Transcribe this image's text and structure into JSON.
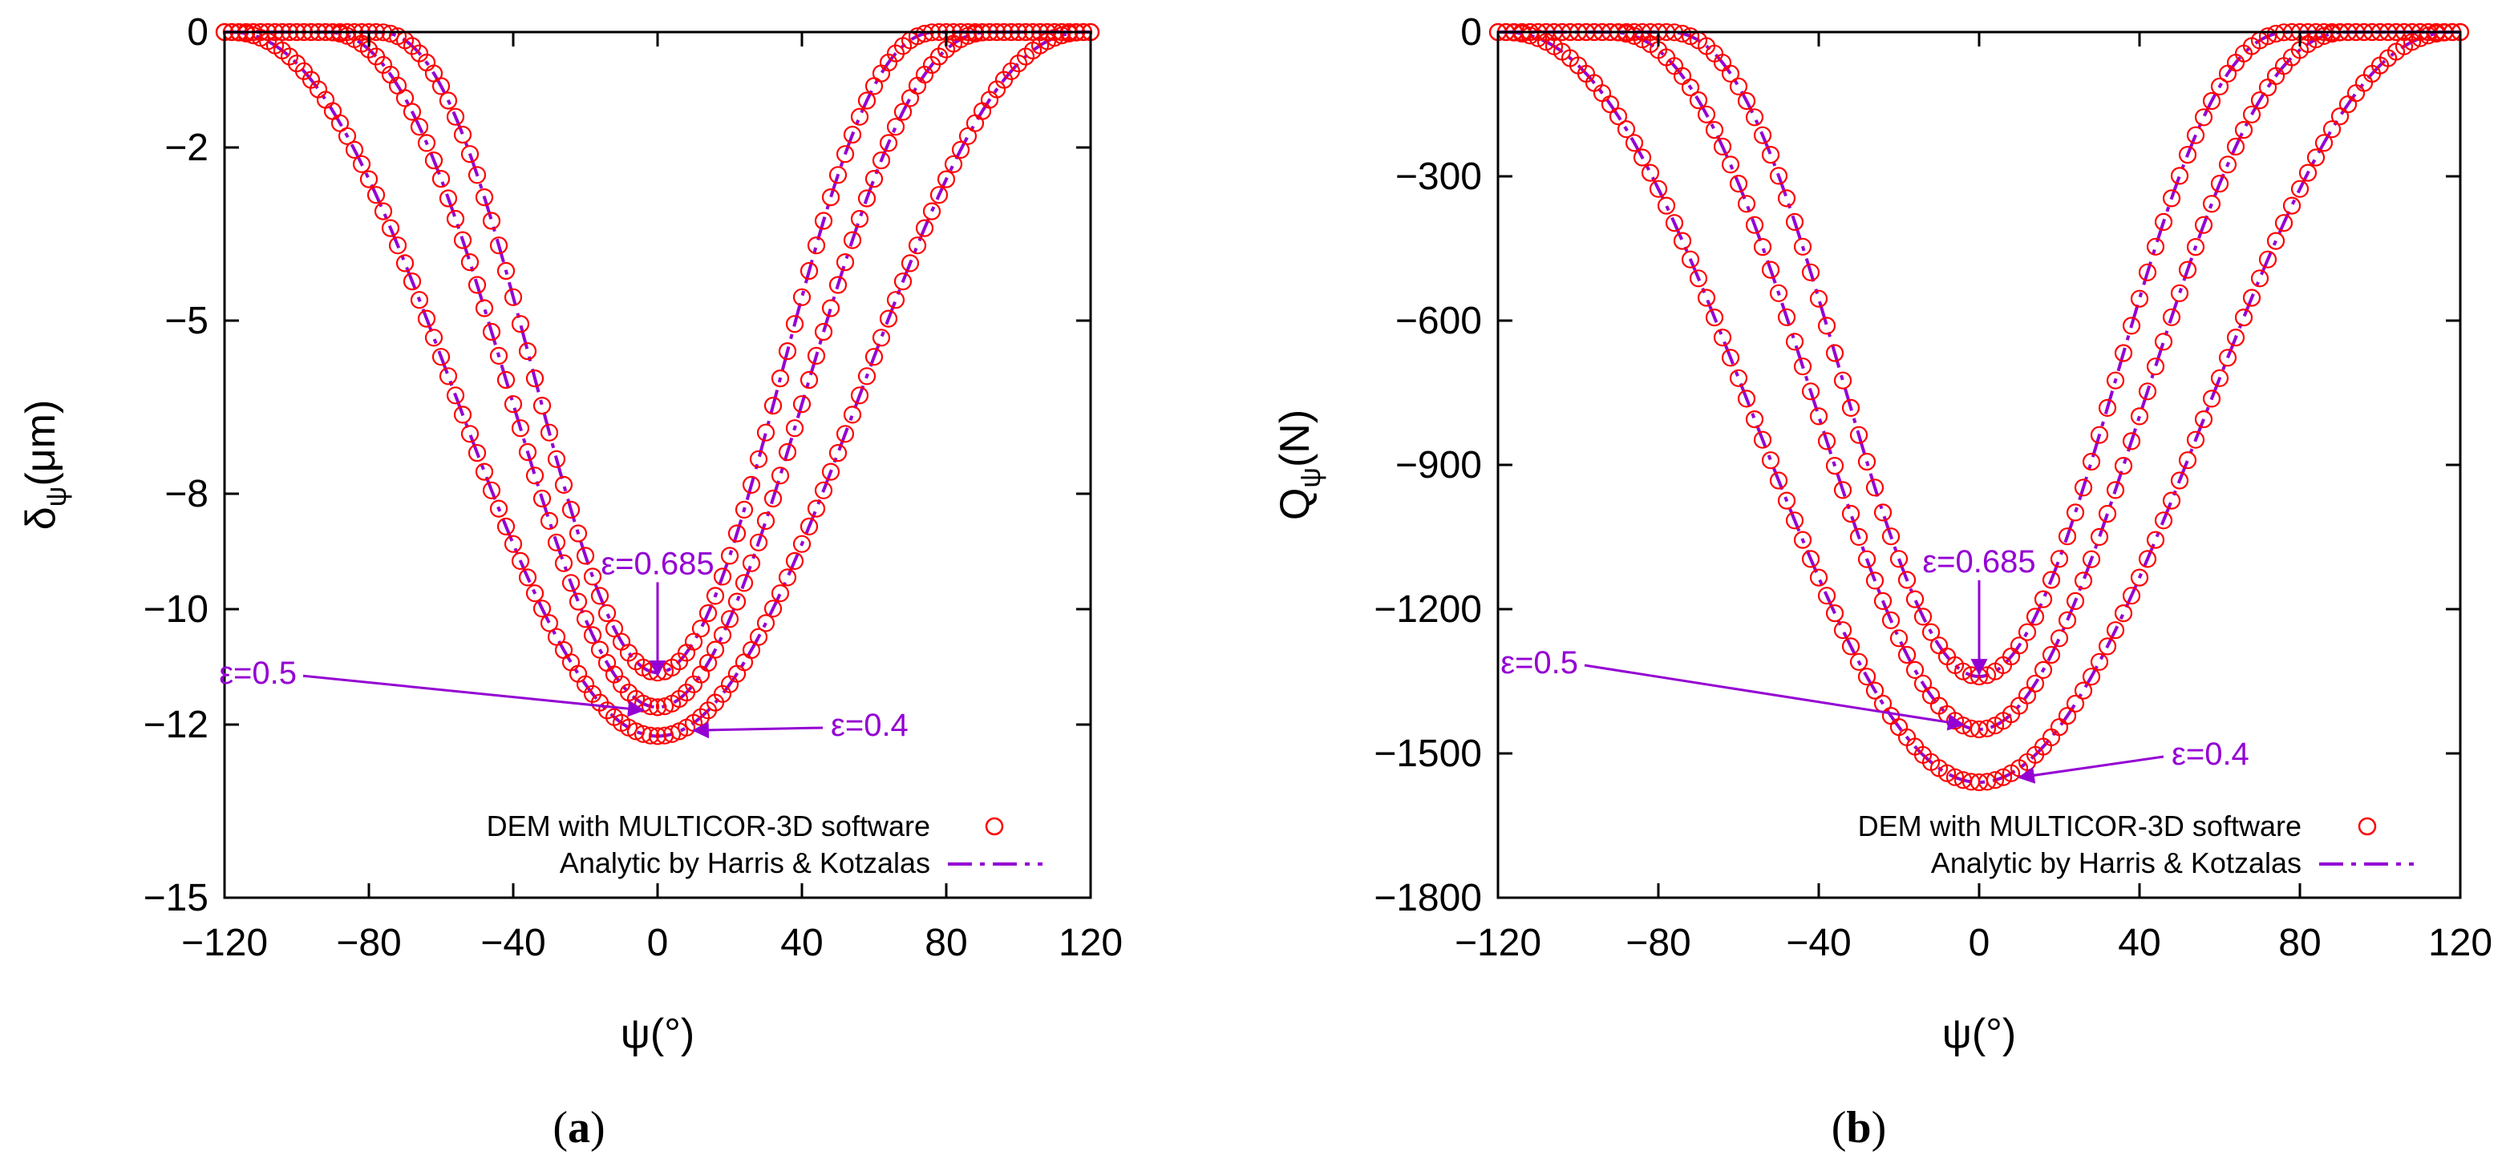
{
  "figure": {
    "legend": {
      "dem_label": "DEM with MULTICOR-3D software",
      "analytic_label": "Analytic by Harris & Kotzalas"
    },
    "colors": {
      "dem": "#ff0000",
      "analytic": "#9400d3",
      "annotation": "#9400d3"
    }
  },
  "chart_data": [
    {
      "type": "scatter",
      "caption": "a",
      "xlabel": "ψ(°)",
      "ylabel_main": "δ",
      "ylabel_sub": "ψ",
      "ylabel_unit": "(μm)",
      "xlim": [
        -120,
        120
      ],
      "ylim": [
        -15,
        0
      ],
      "xticks": [
        -120,
        -80,
        -40,
        0,
        40,
        80,
        120
      ],
      "xtick_labels": [
        "−120",
        "−80",
        "−40",
        "0",
        "40",
        "80",
        "120"
      ],
      "yticks": [
        0,
        -2,
        -5,
        -8,
        -10,
        -12,
        -15
      ],
      "ytick_labels": [
        "0",
        "−2",
        "−5",
        "−8",
        "−10",
        "−12",
        "−15"
      ],
      "series": [
        {
          "name": "ε=0.4",
          "epsilon": 0.4,
          "min": -12.2,
          "half_width": 113,
          "phase": 6
        },
        {
          "name": "ε=0.5",
          "epsilon": 0.5,
          "min": -11.7,
          "half_width": 98,
          "phase": -6
        },
        {
          "name": "ε=0.685",
          "epsilon": 0.685,
          "min": -11.1,
          "half_width": 88,
          "phase": -12
        }
      ],
      "annotations": [
        {
          "text": "ε=0.685",
          "text_at": [
            0,
            -9.2
          ],
          "arrow_to": [
            0,
            -11.15
          ]
        },
        {
          "text": "ε=0.5",
          "text_at": [
            -100,
            -11.1
          ],
          "arrow_to": [
            -4,
            -11.75
          ]
        },
        {
          "text": "ε=0.4",
          "text_at": [
            48,
            -12.0
          ],
          "arrow_to": [
            10,
            -12.1
          ]
        }
      ]
    },
    {
      "type": "scatter",
      "caption": "b",
      "xlabel": "ψ(°)",
      "ylabel_main": "Q",
      "ylabel_sub": "ψ",
      "ylabel_unit": "(N)",
      "xlim": [
        -120,
        120
      ],
      "ylim": [
        -1800,
        0
      ],
      "xticks": [
        -120,
        -80,
        -40,
        0,
        40,
        80,
        120
      ],
      "xtick_labels": [
        "−120",
        "−80",
        "−40",
        "0",
        "40",
        "80",
        "120"
      ],
      "yticks": [
        0,
        -300,
        -600,
        -900,
        -1200,
        -1500,
        -1800
      ],
      "ytick_labels": [
        "0",
        "−300",
        "−600",
        "−900",
        "−1200",
        "−1500",
        "−1800"
      ],
      "series": [
        {
          "name": "ε=0.4",
          "epsilon": 0.4,
          "min": -1560,
          "half_width": 113,
          "phase": 6
        },
        {
          "name": "ε=0.5",
          "epsilon": 0.5,
          "min": -1450,
          "half_width": 98,
          "phase": -6
        },
        {
          "name": "ε=0.685",
          "epsilon": 0.685,
          "min": -1340,
          "half_width": 88,
          "phase": -12
        }
      ],
      "annotations": [
        {
          "text": "ε=0.685",
          "text_at": [
            0,
            -1100
          ],
          "arrow_to": [
            0,
            -1335
          ]
        },
        {
          "text": "ε=0.5",
          "text_at": [
            -100,
            -1310
          ],
          "arrow_to": [
            -4,
            -1440
          ]
        },
        {
          "text": "ε=0.4",
          "text_at": [
            48,
            -1500
          ],
          "arrow_to": [
            10,
            -1550
          ]
        }
      ]
    }
  ]
}
